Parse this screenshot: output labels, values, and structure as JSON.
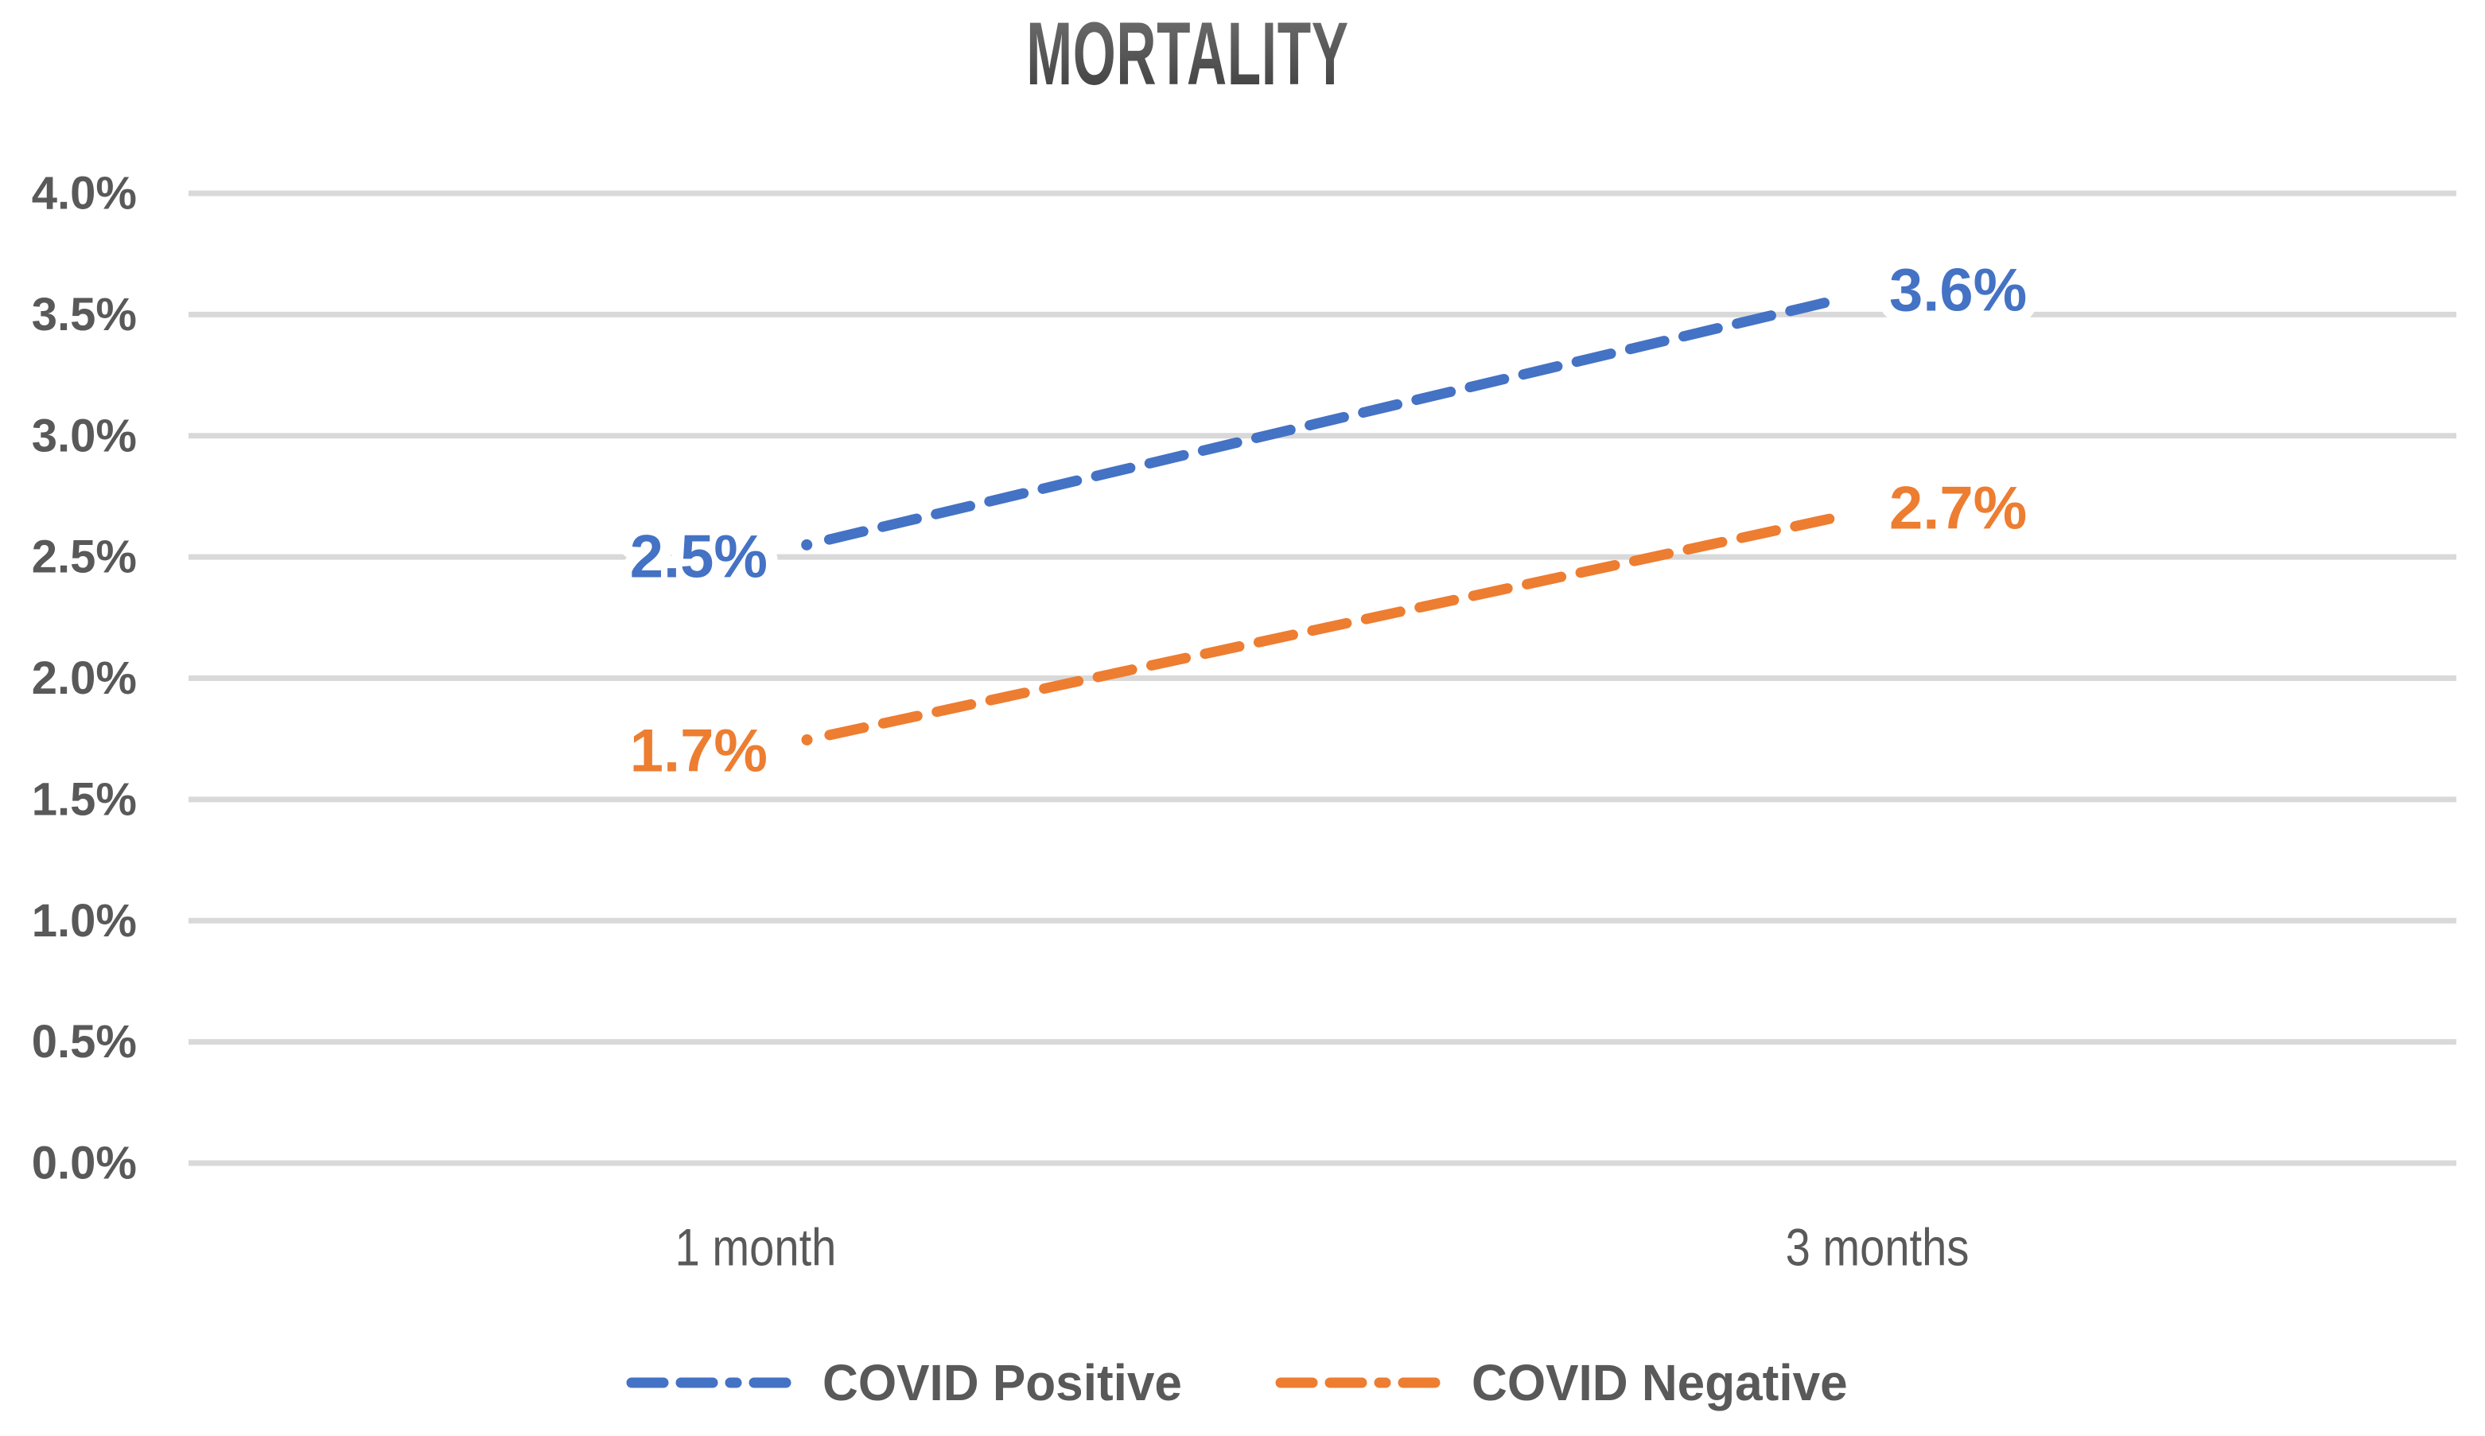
{
  "title": "MORTALITY",
  "chart_data": {
    "type": "line",
    "title": "MORTALITY",
    "categories": [
      "1 month",
      "3 months"
    ],
    "series": [
      {
        "name": "COVID Positive",
        "color": "#4472C4",
        "values": [
          2.5,
          3.6
        ],
        "point_labels": [
          "2.5%",
          "3.6%"
        ]
      },
      {
        "name": "COVID Negative",
        "color": "#ED7D31",
        "values": [
          1.7,
          2.7
        ],
        "point_labels": [
          "1.7%",
          "2.7%"
        ]
      }
    ],
    "xlabel": "",
    "ylabel": "",
    "ylim": [
      0,
      4
    ],
    "ytick_step": 0.5,
    "ytick_labels": [
      "0.0%",
      "0.5%",
      "1.0%",
      "1.5%",
      "2.0%",
      "2.5%",
      "3.0%",
      "3.5%",
      "4.0%"
    ],
    "grid": "horizontal-only",
    "line_style": "dashed",
    "legend_position": "bottom-center"
  },
  "colors": {
    "background": "#FFFFFF",
    "gridline": "#D9D9D9",
    "axis_text": "#595959",
    "title_text": "#4F4F4F",
    "series_blue": "#4472C4",
    "series_orange": "#ED7D31"
  }
}
